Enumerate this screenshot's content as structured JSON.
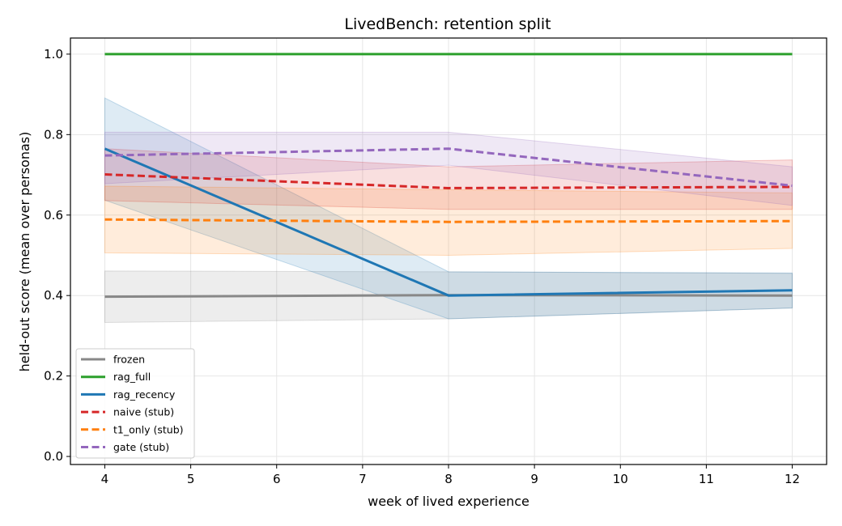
{
  "chart_data": {
    "type": "line",
    "title": "LivedBench: retention split",
    "xlabel": "week of lived experience",
    "ylabel": "held-out score (mean over personas)",
    "xlim": [
      3.6,
      12.4
    ],
    "ylim": [
      -0.02,
      1.04
    ],
    "xticks": [
      4,
      5,
      6,
      7,
      8,
      9,
      10,
      11,
      12
    ],
    "yticks": [
      0.0,
      0.2,
      0.4,
      0.6,
      0.8,
      1.0
    ],
    "ytick_labels": [
      "0.0",
      "0.2",
      "0.4",
      "0.6",
      "0.8",
      "1.0"
    ],
    "grid": true,
    "legend_position": "lower left",
    "x": [
      4,
      8,
      12
    ],
    "series": [
      {
        "name": "frozen",
        "values": [
          0.397,
          0.401,
          0.4
        ],
        "lower": [
          0.333,
          0.342,
          0.369
        ],
        "upper": [
          0.461,
          0.459,
          0.455
        ],
        "color": "#888888",
        "dash": "solid"
      },
      {
        "name": "rag_full",
        "values": [
          1.0,
          1.0,
          1.0
        ],
        "lower": [
          1.0,
          1.0,
          1.0
        ],
        "upper": [
          1.0,
          1.0,
          1.0
        ],
        "color": "#2ca02c",
        "dash": "solid"
      },
      {
        "name": "rag_recency",
        "values": [
          0.765,
          0.4,
          0.413
        ],
        "lower": [
          0.637,
          0.342,
          0.369
        ],
        "upper": [
          0.891,
          0.459,
          0.456
        ],
        "color": "#1f77b4",
        "dash": "solid"
      },
      {
        "name": "naive (stub)",
        "values": [
          0.701,
          0.667,
          0.67
        ],
        "lower": [
          0.636,
          0.614,
          0.614
        ],
        "upper": [
          0.765,
          0.72,
          0.737
        ],
        "color": "#d62728",
        "dash": "dashed"
      },
      {
        "name": "t1_only (stub)",
        "values": [
          0.589,
          0.583,
          0.585
        ],
        "lower": [
          0.506,
          0.5,
          0.517
        ],
        "upper": [
          0.672,
          0.663,
          0.655
        ],
        "color": "#ff7f0e",
        "dash": "dashed"
      },
      {
        "name": "gate (stub)",
        "values": [
          0.748,
          0.765,
          0.673
        ],
        "lower": [
          0.678,
          0.724,
          0.624
        ],
        "upper": [
          0.806,
          0.806,
          0.72
        ],
        "color": "#9467bd",
        "dash": "dashed"
      }
    ]
  }
}
